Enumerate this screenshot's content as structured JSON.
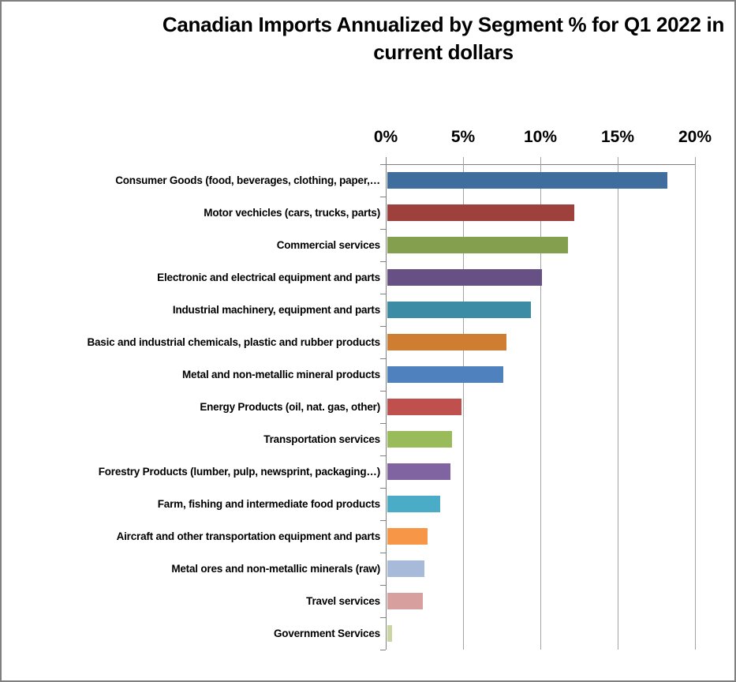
{
  "title": "Canadian Imports Annualized by Segment % for Q1 2022 in current dollars",
  "chart_data": {
    "type": "bar",
    "orientation": "horizontal",
    "title": "Canadian Imports Annualized by Segment % for Q1 2022 in current dollars",
    "value_axis": {
      "position": "top",
      "min": 0,
      "max": 20,
      "tick_labels": [
        "0%",
        "5%",
        "10%",
        "15%",
        "20%"
      ],
      "tick_values": [
        0,
        5,
        10,
        15,
        20
      ]
    },
    "grid": true,
    "legend": false,
    "categories": [
      "Consumer Goods (food, beverages, clothing, paper,…",
      "Motor vechicles (cars, trucks, parts)",
      "Commercial services",
      "Electronic and electrical equipment and parts",
      "Industrial machinery, equipment and parts",
      "Basic and industrial chemicals, plastic and rubber products",
      "Metal and non-metallic mineral products",
      "Energy Products (oil, nat. gas, other)",
      "Transportation services",
      "Forestry Products (lumber, pulp, newsprint, packaging…)",
      "Farm, fishing and intermediate food products",
      "Aircraft and other transportation equipment and parts",
      "Metal ores and non-metallic minerals (raw)",
      "Travel services",
      "Government Services"
    ],
    "values": [
      18.1,
      12.1,
      11.7,
      10.0,
      9.3,
      7.7,
      7.5,
      4.8,
      4.2,
      4.1,
      3.4,
      2.6,
      2.4,
      2.3,
      0.3
    ],
    "bar_colors": [
      "#3F6D9E",
      "#9E413C",
      "#84A04E",
      "#675084",
      "#3C8CA5",
      "#CE7D31",
      "#4E81BD",
      "#C0504D",
      "#9ABB59",
      "#8064A2",
      "#4AACC6",
      "#F79646",
      "#A7BAD9",
      "#D7A09E",
      "#C9D6A3"
    ]
  },
  "style_colors": {
    "gridline": "#A3A3A3",
    "axis_line": "#7F7F7F",
    "text": "#000000",
    "frame_border": "#808080",
    "background": "#FFFFFF"
  }
}
